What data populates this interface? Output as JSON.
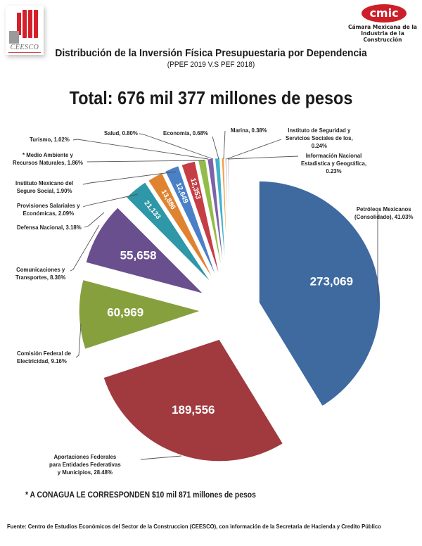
{
  "header": {
    "logo_left_text": "CEESCO",
    "logo_right_text": "cmic",
    "logo_right_sub_1": "Cámara Mexicana de la",
    "logo_right_sub_2": "Industria de la Construcción",
    "title": "Distribución de la Inversión Física Presupuestaria por Dependencia",
    "subtitle": "(PPEF 2019 V.S  PEF 2018)",
    "total": "Total: 676 mil 377 millones de pesos"
  },
  "labels": {
    "pemex_1": "Petróleos Mexicanos",
    "pemex_2": "(Consolidado), 41.03%",
    "aport_1": "Aportaciones Federales",
    "aport_2": "para Entidades Federativas",
    "aport_3": "y Municipios, 28.48%",
    "cfe_1": "Comisión Federal de",
    "cfe_2": "Electricidad, 9.16%",
    "sct_1": "Comunicaciones y",
    "sct_2": "Transportes, 8.36%",
    "defensa": "Defensa Nacional, 3.18%",
    "prov_1": "Provisiones Salariales y",
    "prov_2": "Económicas, 2.09%",
    "imss_1": "Instituto Mexicano del",
    "imss_2": "Seguro Social, 1.90%",
    "semarnat_1": "* Medio Ambiente y",
    "semarnat_2": "Recursos Naturales, 1.86%",
    "turismo": "Turismo, 1.02%",
    "salud": "Salud, 0.80%",
    "economia": "Economia, 0.68%",
    "marina": "Marina, 0.38%",
    "issste_1": "Instituto de Seguridad y",
    "issste_2": "Servicios Sociales de los,",
    "issste_3": "0.24%",
    "inegi_1": "Información Nacional",
    "inegi_2": "Estadistica y Geográfica,",
    "inegi_3": "0.23%"
  },
  "value_labels": {
    "pemex": "273,069",
    "aport": "189,556",
    "cfe": "60,969",
    "sct": "55,658",
    "defensa": "21,133",
    "prov": "13,886",
    "imss": "12,649",
    "semarnat": "12,353"
  },
  "footer": {
    "note": "*  A CONAGUA LE CORRESPONDEN $10 mil  871 millones de pesos",
    "source": "Fuente: Centro de Estudios Económicos del Sector de la Construccion (CEESCO), con información de la Secretaria de Hacienda y Credito Público"
  },
  "chart_data": {
    "type": "pie",
    "title": "Distribución de la Inversión Física Presupuestaria por Dependencia",
    "subtitle": "(PPEF 2019 V.S  PEF 2018)",
    "total_label": "Total: 676 mil 377 millones de pesos",
    "units": "millones de pesos",
    "categories": [
      "Petróleos Mexicanos (Consolidado)",
      "Aportaciones Federales para Entidades Federativas y Municipios",
      "Comisión Federal de Electricidad",
      "Comunicaciones y Transportes",
      "Defensa Nacional",
      "Provisiones Salariales y Económicas",
      "Instituto Mexicano del Seguro Social",
      "Medio Ambiente y Recursos Naturales",
      "Turismo",
      "Salud",
      "Economia",
      "Marina",
      "Instituto de Seguridad y Servicios Sociales de los",
      "Información Nacional Estadistica y Geográfica"
    ],
    "percentages": [
      41.03,
      28.48,
      9.16,
      8.36,
      3.18,
      2.09,
      1.9,
      1.86,
      1.02,
      0.8,
      0.68,
      0.38,
      0.24,
      0.23
    ],
    "values": [
      273069,
      189556,
      60969,
      55658,
      21133,
      13886,
      12649,
      12353,
      null,
      null,
      null,
      null,
      null,
      null
    ],
    "colors": [
      "#3f6aa0",
      "#a03a3f",
      "#86a03e",
      "#6a4f8f",
      "#2e97a8",
      "#e08331",
      "#4a80c6",
      "#c63e45",
      "#93bc4b",
      "#7e62a8",
      "#3fb2c9",
      "#f2a043",
      "#a9bfdc",
      "#d6a9a9"
    ],
    "legend_position": "callout labels",
    "footnote": "*  A CONAGUA LE CORRESPONDEN $10 mil  871 millones de pesos"
  }
}
